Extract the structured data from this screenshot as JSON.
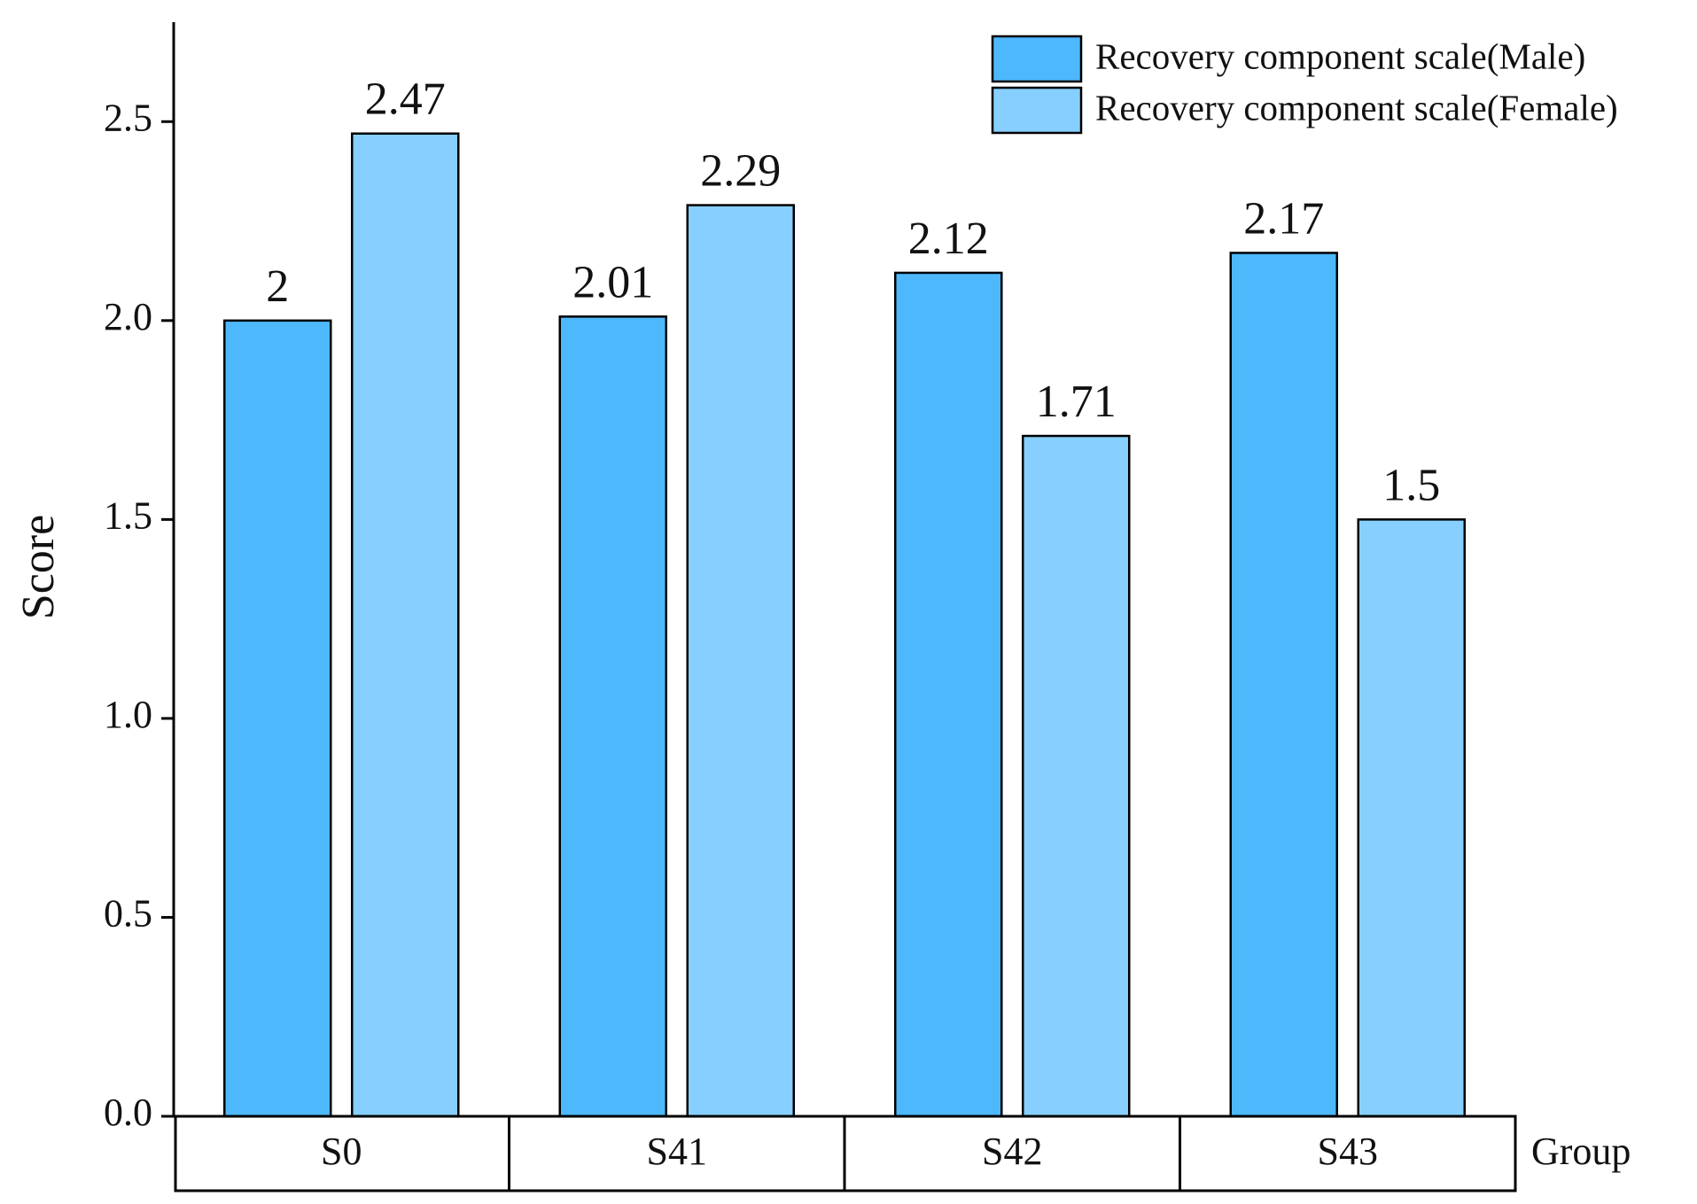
{
  "chart_data": {
    "type": "bar",
    "y_label": "Score",
    "x_label": "Group",
    "categories": [
      "S0",
      "S41",
      "S42",
      "S43"
    ],
    "series": [
      {
        "name": "Recovery component scale(Male)",
        "color": "#4db8fc",
        "values": [
          2,
          2.01,
          2.12,
          2.17
        ]
      },
      {
        "name": "Recovery component scale(Female)",
        "color": "#87cfff",
        "values": [
          2.47,
          2.29,
          1.71,
          1.5
        ]
      }
    ],
    "ylim": [
      0,
      2.75
    ],
    "yticks": [
      {
        "value": 0,
        "label": "0.0"
      },
      0.5,
      {
        "value": 1,
        "label": "1.0"
      },
      1.5,
      {
        "value": 2,
        "label": "2.0"
      },
      2.5
    ],
    "legend": "top-right"
  }
}
